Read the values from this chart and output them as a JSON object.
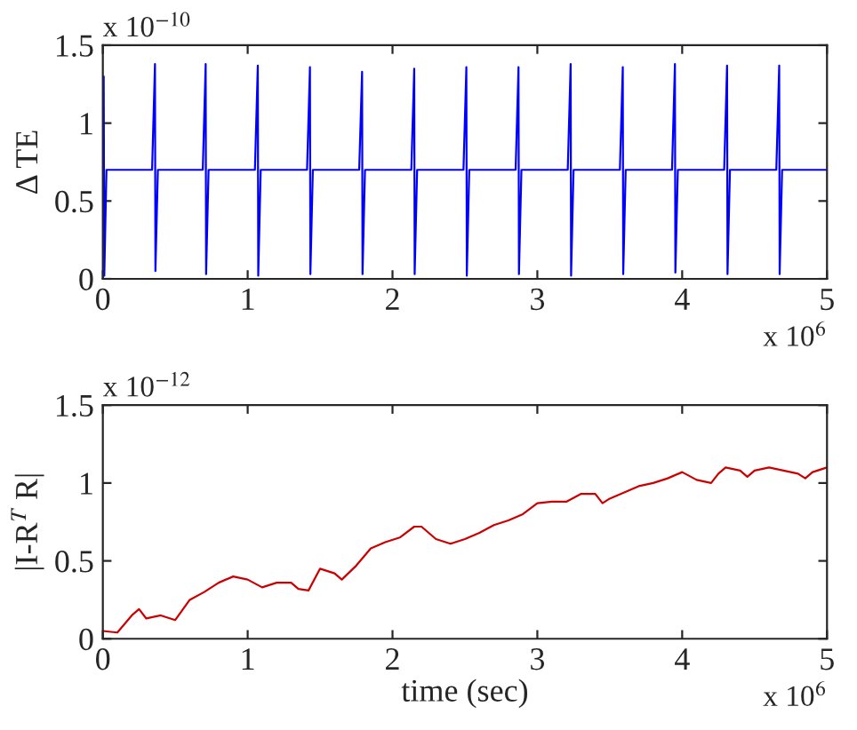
{
  "chart_data": [
    {
      "type": "line",
      "ylabel": "Δ TE",
      "annotations": [
        "x 10$^{−10}$",
        "x 10$^{6}$"
      ],
      "xlim": [
        0,
        5
      ],
      "xticks": [
        0,
        1,
        2,
        3,
        4,
        5
      ],
      "ylim": [
        0,
        1.5
      ],
      "yticks": [
        0,
        0.5,
        1,
        1.5
      ],
      "grid": false,
      "legend": false,
      "series": [
        {
          "color": "#0000ff",
          "x": [
            0.006,
            0.01,
            0.025,
            0.34,
            0.36,
            0.363,
            0.38,
            0.69,
            0.71,
            0.713,
            0.73,
            1.05,
            1.07,
            1.073,
            1.09,
            1.41,
            1.43,
            1.433,
            1.45,
            1.77,
            1.79,
            1.793,
            1.81,
            2.13,
            2.15,
            2.153,
            2.17,
            2.49,
            2.51,
            2.513,
            2.53,
            2.85,
            2.87,
            2.873,
            2.89,
            3.21,
            3.23,
            3.233,
            3.25,
            3.57,
            3.59,
            3.593,
            3.61,
            3.93,
            3.95,
            3.953,
            3.97,
            4.29,
            4.31,
            4.313,
            4.33,
            4.65,
            4.67,
            4.673,
            4.69,
            5
          ],
          "values": [
            1.3,
            0.02,
            0.7,
            0.7,
            1.38,
            0.05,
            0.7,
            0.7,
            1.38,
            0.03,
            0.7,
            0.7,
            1.37,
            0.02,
            0.7,
            0.7,
            1.36,
            0.03,
            0.7,
            0.7,
            1.33,
            0.03,
            0.7,
            0.7,
            1.35,
            0.03,
            0.7,
            0.7,
            1.36,
            0.02,
            0.7,
            0.7,
            1.36,
            0.03,
            0.7,
            0.7,
            1.38,
            0.02,
            0.7,
            0.7,
            1.36,
            0.03,
            0.7,
            0.7,
            1.38,
            0.04,
            0.7,
            0.7,
            1.37,
            0.03,
            0.7,
            0.7,
            1.37,
            0.03,
            0.7,
            0.7
          ]
        }
      ]
    },
    {
      "type": "line",
      "xlabel": "time (sec)",
      "ylabel": "|I-R$^{T}$ R|",
      "annotations": [
        "x 10$^{−12}$",
        "x 10$^{6}$"
      ],
      "xlim": [
        0,
        5
      ],
      "xticks": [
        0,
        1,
        2,
        3,
        4,
        5
      ],
      "ylim": [
        0,
        1.5
      ],
      "yticks": [
        0,
        0.5,
        1,
        1.5
      ],
      "grid": false,
      "legend": false,
      "series": [
        {
          "color": "#cc0000",
          "x": [
            0,
            0.1,
            0.2,
            0.25,
            0.3,
            0.4,
            0.5,
            0.6,
            0.7,
            0.8,
            0.9,
            1.0,
            1.1,
            1.2,
            1.3,
            1.35,
            1.42,
            1.5,
            1.6,
            1.65,
            1.75,
            1.85,
            1.95,
            2.05,
            2.15,
            2.2,
            2.3,
            2.4,
            2.5,
            2.6,
            2.7,
            2.8,
            2.9,
            3.0,
            3.1,
            3.2,
            3.3,
            3.4,
            3.45,
            3.5,
            3.6,
            3.7,
            3.8,
            3.9,
            4.0,
            4.1,
            4.2,
            4.25,
            4.3,
            4.4,
            4.45,
            4.5,
            4.6,
            4.7,
            4.8,
            4.85,
            4.9,
            5.0
          ],
          "values": [
            0.05,
            0.04,
            0.15,
            0.19,
            0.13,
            0.15,
            0.12,
            0.25,
            0.3,
            0.36,
            0.4,
            0.38,
            0.33,
            0.36,
            0.36,
            0.32,
            0.31,
            0.45,
            0.42,
            0.38,
            0.47,
            0.58,
            0.62,
            0.65,
            0.72,
            0.72,
            0.64,
            0.61,
            0.64,
            0.68,
            0.73,
            0.76,
            0.8,
            0.87,
            0.88,
            0.88,
            0.93,
            0.93,
            0.87,
            0.9,
            0.94,
            0.98,
            1.0,
            1.03,
            1.07,
            1.02,
            1.0,
            1.06,
            1.1,
            1.08,
            1.04,
            1.08,
            1.1,
            1.08,
            1.06,
            1.03,
            1.07,
            1.1
          ]
        }
      ]
    }
  ]
}
